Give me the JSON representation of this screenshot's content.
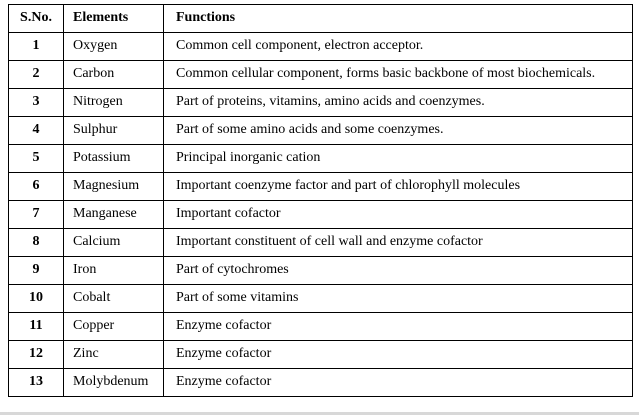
{
  "table": {
    "columns": [
      {
        "label": "S.No."
      },
      {
        "label": "Elements"
      },
      {
        "label": "Functions"
      }
    ],
    "rows": [
      {
        "sno": "1",
        "element": "Oxygen",
        "function": "Common cell component, electron acceptor."
      },
      {
        "sno": "2",
        "element": "Carbon",
        "function": "Common cellular component, forms basic backbone of most biochemicals."
      },
      {
        "sno": "3",
        "element": "Nitrogen",
        "function": "Part of proteins, vitamins, amino acids and coenzymes."
      },
      {
        "sno": "4",
        "element": "Sulphur",
        "function": "Part of some amino acids and some coenzymes."
      },
      {
        "sno": "5",
        "element": "Potassium",
        "function": "Principal inorganic cation"
      },
      {
        "sno": "6",
        "element": "Magnesium",
        "function": "Important coenzyme factor and part of chlorophyll molecules"
      },
      {
        "sno": "7",
        "element": "Manganese",
        "function": "Important cofactor"
      },
      {
        "sno": "8",
        "element": "Calcium",
        "function": "Important constituent of cell wall and enzyme cofactor"
      },
      {
        "sno": "9",
        "element": "Iron",
        "function": "Part of cytochromes"
      },
      {
        "sno": "10",
        "element": "Cobalt",
        "function": "Part of some vitamins"
      },
      {
        "sno": "11",
        "element": "Copper",
        "function": "Enzyme cofactor"
      },
      {
        "sno": "12",
        "element": "Zinc",
        "function": "Enzyme cofactor"
      },
      {
        "sno": "13",
        "element": "Molybdenum",
        "function": "Enzyme cofactor"
      }
    ]
  },
  "colors": {
    "border": "#000000",
    "background": "#ffffff",
    "text": "#000000"
  }
}
